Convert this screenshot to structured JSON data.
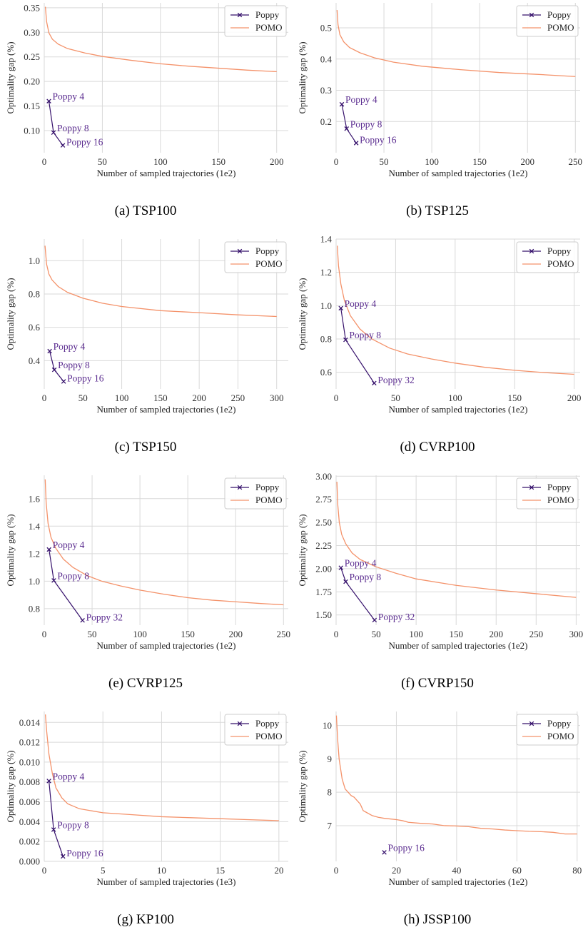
{
  "figure": {
    "colors": {
      "poppy": "#35106b",
      "pomo": "#f4926a",
      "annotation": "#5a2b8f",
      "grid": "#d9d9d9"
    },
    "legend_labels": [
      "Poppy",
      "POMO"
    ]
  },
  "chart_data": [
    {
      "type": "line",
      "caption": "(a) TSP100",
      "xlabel": "Number of sampled trajectories (1e2)",
      "ylabel": "Optimality gap (%)",
      "xlim": [
        0,
        210
      ],
      "ylim": [
        0.055,
        0.36
      ],
      "xticks": [
        0,
        50,
        100,
        150,
        200
      ],
      "xtick_labels": [
        "0",
        "50",
        "100",
        "150",
        "200"
      ],
      "yticks": [
        0.1,
        0.15,
        0.2,
        0.25,
        0.3,
        0.35
      ],
      "ytick_labels": [
        "0.10",
        "0.15",
        "0.20",
        "0.25",
        "0.30",
        "0.35"
      ],
      "series": [
        {
          "name": "Poppy",
          "type": "line-marker",
          "points": [
            [
              4,
              0.16
            ],
            [
              8,
              0.096
            ],
            [
              16,
              0.07
            ]
          ],
          "labels": [
            "Poppy 4",
            "Poppy 8",
            "Poppy 16"
          ]
        },
        {
          "name": "POMO",
          "type": "line",
          "points": [
            [
              1,
              0.352
            ],
            [
              2,
              0.322
            ],
            [
              4,
              0.299
            ],
            [
              7,
              0.286
            ],
            [
              12,
              0.276
            ],
            [
              20,
              0.267
            ],
            [
              35,
              0.258
            ],
            [
              50,
              0.251
            ],
            [
              75,
              0.243
            ],
            [
              100,
              0.236
            ],
            [
              125,
              0.231
            ],
            [
              150,
              0.227
            ],
            [
              175,
              0.223
            ],
            [
              200,
              0.22
            ]
          ]
        }
      ]
    },
    {
      "type": "line",
      "caption": "(b) TSP125",
      "xlabel": "Number of sampled trajectories (1e2)",
      "ylabel": "Optimality gap (%)",
      "xlim": [
        0,
        255
      ],
      "ylim": [
        0.1,
        0.58
      ],
      "xticks": [
        0,
        50,
        100,
        150,
        200,
        250
      ],
      "xtick_labels": [
        "0",
        "50",
        "100",
        "150",
        "200",
        "250"
      ],
      "yticks": [
        0.2,
        0.3,
        0.4,
        0.5
      ],
      "ytick_labels": [
        "0.2",
        "0.3",
        "0.4",
        "0.5"
      ],
      "series": [
        {
          "name": "Poppy",
          "type": "line-marker",
          "points": [
            [
              6,
              0.255
            ],
            [
              11,
              0.177
            ],
            [
              21,
              0.131
            ]
          ],
          "labels": [
            "Poppy 4",
            "Poppy 8",
            "Poppy 16"
          ]
        },
        {
          "name": "POMO",
          "type": "line",
          "points": [
            [
              1,
              0.557
            ],
            [
              2,
              0.51
            ],
            [
              4,
              0.478
            ],
            [
              8,
              0.455
            ],
            [
              14,
              0.437
            ],
            [
              25,
              0.42
            ],
            [
              40,
              0.404
            ],
            [
              60,
              0.39
            ],
            [
              90,
              0.377
            ],
            [
              130,
              0.366
            ],
            [
              170,
              0.357
            ],
            [
              210,
              0.351
            ],
            [
              250,
              0.344
            ]
          ]
        }
      ]
    },
    {
      "type": "line",
      "caption": "(c) TSP150",
      "xlabel": "Number of sampled trajectories (1e2)",
      "ylabel": "Optimality gap (%)",
      "xlim": [
        0,
        315
      ],
      "ylim": [
        0.23,
        1.13
      ],
      "xticks": [
        0,
        50,
        100,
        150,
        200,
        250,
        300
      ],
      "xtick_labels": [
        "0",
        "50",
        "100",
        "150",
        "200",
        "250",
        "300"
      ],
      "yticks": [
        0.4,
        0.6,
        0.8,
        1.0
      ],
      "ytick_labels": [
        "0.4",
        "0.6",
        "0.8",
        "1.0"
      ],
      "series": [
        {
          "name": "Poppy",
          "type": "line-marker",
          "points": [
            [
              7,
              0.457
            ],
            [
              13,
              0.345
            ],
            [
              25,
              0.275
            ]
          ],
          "labels": [
            "Poppy 4",
            "Poppy 8",
            "Poppy 16"
          ]
        },
        {
          "name": "POMO",
          "type": "line",
          "points": [
            [
              1,
              1.09
            ],
            [
              3,
              0.98
            ],
            [
              6,
              0.92
            ],
            [
              10,
              0.885
            ],
            [
              18,
              0.845
            ],
            [
              30,
              0.81
            ],
            [
              50,
              0.775
            ],
            [
              75,
              0.745
            ],
            [
              100,
              0.725
            ],
            [
              150,
              0.7
            ],
            [
              200,
              0.688
            ],
            [
              250,
              0.675
            ],
            [
              300,
              0.665
            ]
          ]
        }
      ]
    },
    {
      "type": "line",
      "caption": "(d) CVRP100",
      "xlabel": "Number of sampled trajectories (1e2)",
      "ylabel": "Optimality gap (%)",
      "xlim": [
        0,
        205
      ],
      "ylim": [
        0.5,
        1.4
      ],
      "xticks": [
        0,
        50,
        100,
        150,
        200
      ],
      "xtick_labels": [
        "0",
        "50",
        "100",
        "150",
        "200"
      ],
      "yticks": [
        0.6,
        0.8,
        1.0,
        1.2,
        1.4
      ],
      "ytick_labels": [
        "0.6",
        "0.8",
        "1.0",
        "1.2",
        "1.4"
      ],
      "series": [
        {
          "name": "Poppy",
          "type": "line-marker",
          "points": [
            [
              4,
              0.985
            ],
            [
              8,
              0.795
            ],
            [
              32,
              0.535
            ]
          ],
          "labels": [
            "Poppy 4",
            "Poppy 8",
            "Poppy 32"
          ]
        },
        {
          "name": "POMO",
          "type": "line",
          "points": [
            [
              1,
              1.36
            ],
            [
              2,
              1.24
            ],
            [
              4,
              1.13
            ],
            [
              7,
              1.03
            ],
            [
              12,
              0.94
            ],
            [
              20,
              0.86
            ],
            [
              30,
              0.8
            ],
            [
              45,
              0.745
            ],
            [
              60,
              0.71
            ],
            [
              80,
              0.68
            ],
            [
              100,
              0.655
            ],
            [
              125,
              0.63
            ],
            [
              150,
              0.612
            ],
            [
              175,
              0.598
            ],
            [
              200,
              0.588
            ]
          ]
        }
      ]
    },
    {
      "type": "line",
      "caption": "(e) CVRP125",
      "xlabel": "Number of sampled trajectories (1e2)",
      "ylabel": "Optimality gap (%)",
      "xlim": [
        0,
        255
      ],
      "ylim": [
        0.68,
        1.77
      ],
      "xticks": [
        0,
        50,
        100,
        150,
        200,
        250
      ],
      "xtick_labels": [
        "0",
        "50",
        "100",
        "150",
        "200",
        "250"
      ],
      "yticks": [
        0.8,
        1.0,
        1.2,
        1.4,
        1.6
      ],
      "ytick_labels": [
        "0.8",
        "1.0",
        "1.2",
        "1.4",
        "1.6"
      ],
      "series": [
        {
          "name": "Poppy",
          "type": "line-marker",
          "points": [
            [
              5,
              1.23
            ],
            [
              10,
              1.005
            ],
            [
              40,
              0.715
            ]
          ],
          "labels": [
            "Poppy 4",
            "Poppy 8",
            "Poppy 32"
          ]
        },
        {
          "name": "POMO",
          "type": "line",
          "points": [
            [
              1,
              1.74
            ],
            [
              2,
              1.57
            ],
            [
              4,
              1.42
            ],
            [
              7,
              1.32
            ],
            [
              12,
              1.24
            ],
            [
              20,
              1.16
            ],
            [
              30,
              1.1
            ],
            [
              45,
              1.04
            ],
            [
              60,
              1.0
            ],
            [
              80,
              0.965
            ],
            [
              100,
              0.935
            ],
            [
              125,
              0.905
            ],
            [
              150,
              0.88
            ],
            [
              175,
              0.862
            ],
            [
              200,
              0.85
            ],
            [
              225,
              0.838
            ],
            [
              250,
              0.828
            ]
          ]
        }
      ]
    },
    {
      "type": "line",
      "caption": "(f) CVRP150",
      "xlabel": "Number of sampled trajectories (1e2)",
      "ylabel": "Optimality gap (%)",
      "xlim": [
        0,
        305
      ],
      "ylim": [
        1.39,
        3.01
      ],
      "xticks": [
        0,
        50,
        100,
        150,
        200,
        250,
        300
      ],
      "xtick_labels": [
        "0",
        "50",
        "100",
        "150",
        "200",
        "250",
        "300"
      ],
      "yticks": [
        1.5,
        1.75,
        2.0,
        2.25,
        2.5,
        2.75,
        3.0
      ],
      "ytick_labels": [
        "1.50",
        "1.75",
        "2.00",
        "2.25",
        "2.50",
        "2.75",
        "3.00"
      ],
      "series": [
        {
          "name": "Poppy",
          "type": "line-marker",
          "points": [
            [
              6,
              2.01
            ],
            [
              12,
              1.86
            ],
            [
              48,
              1.445
            ]
          ],
          "labels": [
            "Poppy 4",
            "Poppy 8",
            "Poppy 32"
          ]
        },
        {
          "name": "POMO",
          "type": "line",
          "points": [
            [
              1,
              2.94
            ],
            [
              2,
              2.7
            ],
            [
              4,
              2.5
            ],
            [
              7,
              2.37
            ],
            [
              12,
              2.27
            ],
            [
              20,
              2.17
            ],
            [
              30,
              2.1
            ],
            [
              50,
              2.02
            ],
            [
              75,
              1.95
            ],
            [
              100,
              1.89
            ],
            [
              150,
              1.82
            ],
            [
              200,
              1.77
            ],
            [
              250,
              1.73
            ],
            [
              300,
              1.69
            ]
          ]
        }
      ]
    },
    {
      "type": "line",
      "caption": "(g) KP100",
      "xlabel": "Number of sampled trajectories (1e3)",
      "ylabel": "Optimality gap (%)",
      "xlim": [
        0,
        20.8
      ],
      "ylim": [
        0.0,
        0.0151
      ],
      "xticks": [
        0,
        5,
        10,
        15,
        20
      ],
      "xtick_labels": [
        "0",
        "5",
        "10",
        "15",
        "20"
      ],
      "yticks": [
        0.0,
        0.002,
        0.004,
        0.006,
        0.008,
        0.01,
        0.012,
        0.014
      ],
      "ytick_labels": [
        "0.000",
        "0.002",
        "0.004",
        "0.006",
        "0.008",
        "0.010",
        "0.012",
        "0.014"
      ],
      "series": [
        {
          "name": "Poppy",
          "type": "line-marker",
          "points": [
            [
              0.4,
              0.0081
            ],
            [
              0.8,
              0.0032
            ],
            [
              1.6,
              0.0005
            ]
          ],
          "labels": [
            "Poppy 4",
            "Poppy 8",
            "Poppy 16"
          ]
        },
        {
          "name": "POMO",
          "type": "line",
          "points": [
            [
              0.1,
              0.0148
            ],
            [
              0.2,
              0.0132
            ],
            [
              0.4,
              0.0108
            ],
            [
              0.7,
              0.0088
            ],
            [
              1.0,
              0.0074
            ],
            [
              1.5,
              0.0064
            ],
            [
              2.0,
              0.0058
            ],
            [
              3.0,
              0.0053
            ],
            [
              5.0,
              0.0049
            ],
            [
              7.5,
              0.0047
            ],
            [
              10,
              0.0045
            ],
            [
              12.5,
              0.0044
            ],
            [
              15,
              0.0043
            ],
            [
              17.5,
              0.0042
            ],
            [
              20,
              0.0041
            ]
          ]
        }
      ]
    },
    {
      "type": "line",
      "caption": "(h) JSSP100",
      "xlabel": "Number of sampled trajectories (1e2)",
      "ylabel": "Optimality gap (%)",
      "xlim": [
        0,
        81
      ],
      "ylim": [
        5.93,
        10.42
      ],
      "xticks": [
        0,
        20,
        40,
        60,
        80
      ],
      "xtick_labels": [
        "0",
        "20",
        "40",
        "60",
        "80"
      ],
      "yticks": [
        7,
        8,
        9,
        10
      ],
      "ytick_labels": [
        "7",
        "8",
        "9",
        "10"
      ],
      "series": [
        {
          "name": "Poppy",
          "type": "line-marker",
          "points": [
            [
              16,
              6.2
            ]
          ],
          "labels": [
            "Poppy 16"
          ]
        },
        {
          "name": "POMO",
          "type": "line",
          "points": [
            [
              0.1,
              10.3
            ],
            [
              0.5,
              9.6
            ],
            [
              1,
              9.0
            ],
            [
              1.5,
              8.7
            ],
            [
              2,
              8.4
            ],
            [
              3,
              8.1
            ],
            [
              4,
              8.0
            ],
            [
              5,
              7.9
            ],
            [
              6,
              7.85
            ],
            [
              7,
              7.75
            ],
            [
              8,
              7.65
            ],
            [
              9,
              7.45
            ],
            [
              10,
              7.4
            ],
            [
              12,
              7.3
            ],
            [
              14,
              7.25
            ],
            [
              16,
              7.22
            ],
            [
              20,
              7.18
            ],
            [
              22,
              7.15
            ],
            [
              24,
              7.1
            ],
            [
              28,
              7.07
            ],
            [
              32,
              7.05
            ],
            [
              36,
              7.0
            ],
            [
              40,
              6.99
            ],
            [
              44,
              6.97
            ],
            [
              48,
              6.92
            ],
            [
              52,
              6.9
            ],
            [
              56,
              6.87
            ],
            [
              60,
              6.85
            ],
            [
              64,
              6.83
            ],
            [
              68,
              6.82
            ],
            [
              72,
              6.8
            ],
            [
              76,
              6.75
            ],
            [
              80,
              6.75
            ]
          ]
        }
      ]
    }
  ]
}
